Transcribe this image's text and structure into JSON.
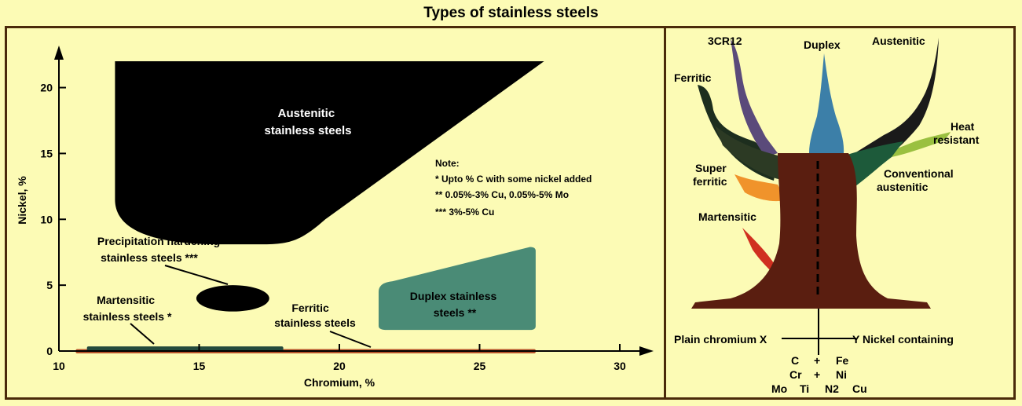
{
  "title": "Types of stainless steels",
  "colors": {
    "background": "#fcfbb5",
    "frame": "#4a2a0a",
    "austenitic_region": "#000000",
    "duplex_region": "#4a8b76",
    "martensitic_bar": "#244a3c",
    "ferritic_bar": "#b7532a",
    "trunk": "#5a1e10"
  },
  "chart_data": {
    "type": "region-diagram",
    "xlabel": "Chromium, %",
    "ylabel": "Nickel, %",
    "xlim": [
      10,
      30
    ],
    "ylim": [
      0,
      22
    ],
    "xticks": [
      "10",
      "15",
      "20",
      "25",
      "30"
    ],
    "yticks": [
      "0",
      "5",
      "10",
      "15",
      "20"
    ],
    "regions": [
      {
        "name": "Austenitic stainless steels",
        "label_lines": [
          "Austenitic",
          "stainless steels"
        ]
      },
      {
        "name": "Duplex stainless steels **",
        "label_lines": [
          "Duplex stainless",
          "steels **"
        ]
      },
      {
        "name": "Precipitation hardening stainless steels ***",
        "label_lines": [
          "Precipitation hardening",
          "stainless steels ***"
        ]
      },
      {
        "name": "Martensitic stainless steels *",
        "label_lines": [
          "Martensitic",
          "stainless steels *"
        ]
      },
      {
        "name": "Ferritic stainless steels",
        "label_lines": [
          "Ferritic",
          "stainless steels"
        ]
      }
    ],
    "notes": [
      "Note:",
      "* Upto % C with some nickel added",
      "** 0.05%-3% Cu, 0.05%-5% Mo",
      "*** 3%-5% Cu"
    ]
  },
  "tree": {
    "branches": [
      "3CR12",
      "Duplex",
      "Austenitic",
      "Ferritic",
      "Heat",
      "resistant",
      "Super",
      "ferritic",
      "Conventional",
      "austenitic",
      "Martensitic"
    ],
    "axis_left": "Plain chromium X",
    "axis_right": "Y Nickel containing",
    "elements": [
      "C",
      "Cr",
      "Mo",
      "Ti",
      "+",
      "+",
      "Fe",
      "Ni",
      "N2",
      "Cu"
    ]
  }
}
